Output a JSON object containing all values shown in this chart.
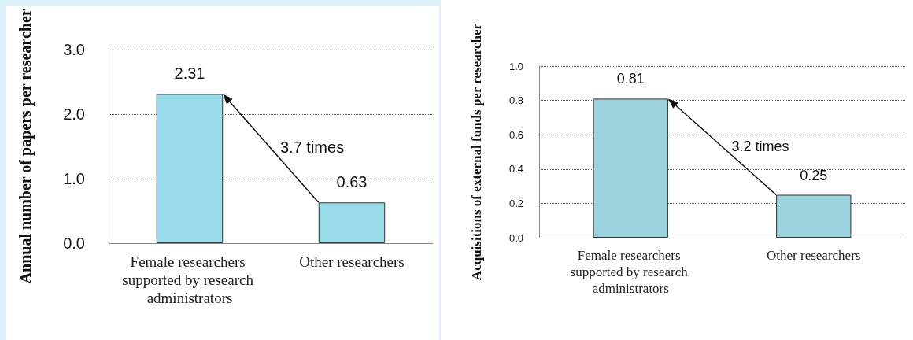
{
  "chart_data": [
    {
      "type": "bar",
      "ylabel": "Annual number of papers per researcher",
      "categories": [
        "Female researchers supported by research administrators",
        "Other researchers"
      ],
      "values": [
        2.31,
        0.63
      ],
      "color": "#99dcea",
      "ylim": [
        0,
        3
      ],
      "yticks": [
        {
          "value": 0,
          "label": "0.0"
        },
        {
          "value": 1,
          "label": "1.0"
        },
        {
          "value": 2,
          "label": "2.0"
        },
        {
          "value": 3,
          "label": "3.0"
        }
      ],
      "grid": "y",
      "data_labels": true,
      "annotations": [
        "3.7 times"
      ]
    },
    {
      "type": "bar",
      "ylabel": "Acquisitions of external funds per researcher",
      "categories": [
        "Female researchers supported by research administrators",
        "Other researchers"
      ],
      "values": [
        0.81,
        0.25
      ],
      "color": "#9bd3df",
      "ylim": [
        0,
        1
      ],
      "yticks": [
        {
          "value": 0,
          "label": "0.0"
        },
        {
          "value": 0.2,
          "label": "0.2"
        },
        {
          "value": 0.4,
          "label": "0.4"
        },
        {
          "value": 0.6,
          "label": "0.6"
        },
        {
          "value": 0.8,
          "label": "0.8"
        },
        {
          "value": 1,
          "label": "1.0"
        }
      ],
      "grid": "y",
      "data_labels": true,
      "annotations": [
        "3.2 times"
      ]
    }
  ]
}
